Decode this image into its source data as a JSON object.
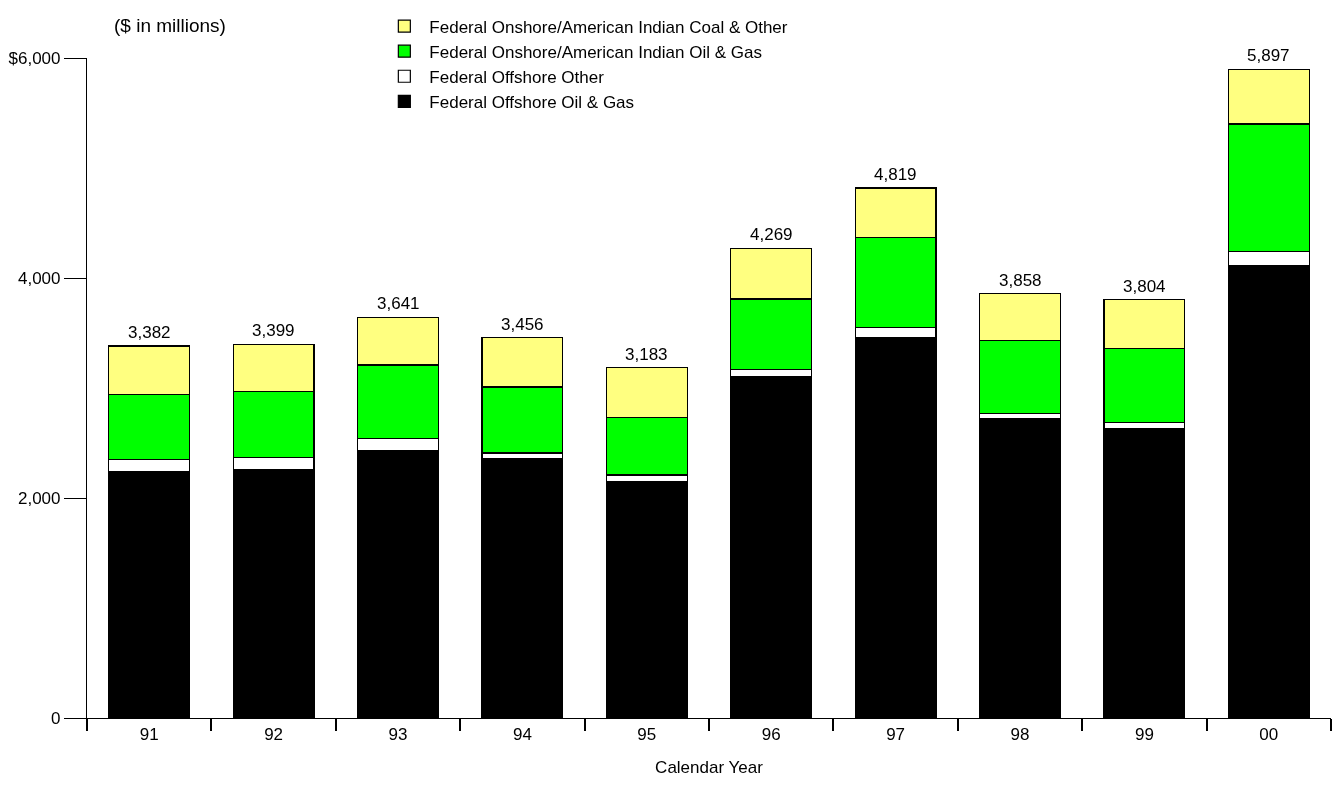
{
  "chart_data": {
    "type": "bar",
    "stacked": true,
    "xlabel": "Calendar Year",
    "annotations": [
      "($ in millions)"
    ],
    "categories": [
      "91",
      "92",
      "93",
      "94",
      "95",
      "96",
      "97",
      "98",
      "99",
      "00"
    ],
    "series": [
      {
        "name": "Federal Offshore Oil & Gas",
        "color": "#000000",
        "values": [
          2240,
          2260,
          2430,
          2360,
          2150,
          3100,
          3460,
          2720,
          2630,
          4110
        ]
      },
      {
        "name": "Federal Offshore Other",
        "color": "#ffffff",
        "values": [
          110,
          110,
          110,
          50,
          60,
          70,
          90,
          50,
          60,
          130
        ]
      },
      {
        "name": "Federal Onshore/American Indian Oil & Gas",
        "color": "#00ff00",
        "values": [
          590,
          600,
          670,
          600,
          520,
          640,
          820,
          660,
          670,
          1160
        ]
      },
      {
        "name": "Federal Onshore/American Indian Coal & Other",
        "color": "#ffff80",
        "values": [
          442,
          429,
          431,
          446,
          453,
          459,
          449,
          428,
          444,
          497
        ]
      }
    ],
    "totals": [
      "3,382",
      "3,399",
      "3,641",
      "3,456",
      "3,183",
      "4,269",
      "4,819",
      "3,858",
      "3,804",
      "5,897"
    ],
    "ylim": [
      0,
      6000
    ],
    "yticks": [
      0,
      {
        "value": 2000,
        "label": "2,000"
      },
      {
        "value": 4000,
        "label": "4,000"
      },
      {
        "value": 6000,
        "label": "$6,000"
      }
    ],
    "legend": "top"
  }
}
